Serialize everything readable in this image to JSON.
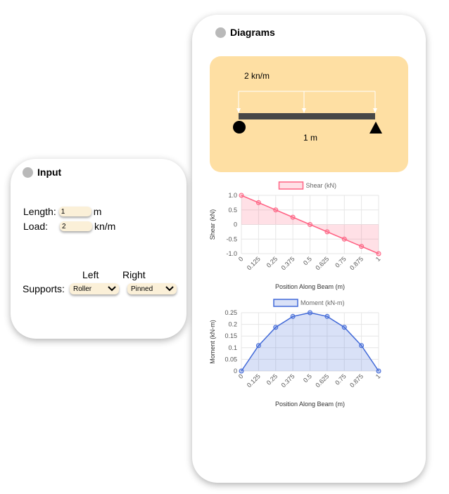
{
  "input_panel": {
    "title": "Input",
    "length_label": "Length:",
    "length_value": "1",
    "length_unit": "m",
    "load_label": "Load:",
    "load_value": "2",
    "load_unit": "kn/m",
    "left_label": "Left",
    "right_label": "Right",
    "supports_label": "Supports:",
    "left_support": "Roller",
    "right_support": "Pinned"
  },
  "diagrams_panel": {
    "title": "Diagrams",
    "load_text": "2 kn/m",
    "span_text": "1 m"
  },
  "colors": {
    "shear": "#ff6384",
    "moment": "#4169d8",
    "beam_panel": "#fedfa3",
    "input_field": "#fbf0d8"
  },
  "chart_data": [
    {
      "type": "line",
      "legend": "Shear (kN)",
      "x": [
        "0",
        "0.125",
        "0.25",
        "0.375",
        "0.5",
        "0.625",
        "0.75",
        "0.875",
        "1"
      ],
      "values": [
        1,
        0.75,
        0.5,
        0.25,
        0,
        -0.25,
        -0.5,
        -0.75,
        -1
      ],
      "ylim": [
        -1,
        1
      ],
      "yticks": [
        "1.0",
        "0.5",
        "0",
        "-0.5",
        "-1.0"
      ],
      "ytick_values": [
        1,
        0.5,
        0,
        -0.5,
        -1
      ],
      "xlabel": "Position Along Beam (m)",
      "ylabel": "Shear (kN)"
    },
    {
      "type": "line",
      "legend": "Moment (kN-m)",
      "x": [
        "0",
        "0.125",
        "0.25",
        "0.375",
        "0.5",
        "0.625",
        "0.75",
        "0.875",
        "1"
      ],
      "values": [
        0,
        0.109,
        0.1875,
        0.234,
        0.25,
        0.234,
        0.1875,
        0.109,
        0
      ],
      "ylim": [
        0,
        0.25
      ],
      "yticks": [
        "0.25",
        "0.2",
        "0.15",
        "0.1",
        "0.05",
        "0"
      ],
      "ytick_values": [
        0.25,
        0.2,
        0.15,
        0.1,
        0.05,
        0
      ],
      "xlabel": "Position Along Beam (m)",
      "ylabel": "Moment (kN-m)"
    }
  ]
}
